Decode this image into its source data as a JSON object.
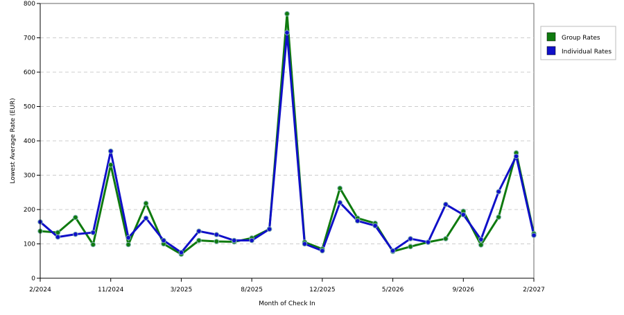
{
  "chart_data": {
    "type": "line",
    "title": "",
    "xlabel": "Month of Check In",
    "ylabel": "Lowest Average Rate (EUR)",
    "ylim": [
      0,
      800
    ],
    "yticks": [
      0,
      100,
      200,
      300,
      400,
      500,
      600,
      700,
      800
    ],
    "x_tick_labels": [
      "2/2024",
      "11/2024",
      "3/2025",
      "8/2025",
      "12/2025",
      "5/2026",
      "9/2026",
      "2/2027"
    ],
    "x_tick_positions": [
      0,
      4,
      8,
      12,
      16,
      20,
      24,
      28
    ],
    "x_range": [
      0,
      28
    ],
    "grid": "horizontal dashed",
    "legend_position": "right",
    "series": [
      {
        "name": "Group Rates",
        "color": "#0f7a0f",
        "values": [
          137,
          133,
          177,
          98,
          330,
          98,
          218,
          100,
          70,
          110,
          107,
          106,
          117,
          143,
          770,
          105,
          85,
          262,
          175,
          160,
          78,
          92,
          105,
          115,
          195,
          97,
          178,
          365,
          130
        ]
      },
      {
        "name": "Individual Rates",
        "color": "#1010c8",
        "values": [
          164,
          120,
          128,
          133,
          370,
          118,
          175,
          110,
          75,
          137,
          127,
          110,
          110,
          143,
          715,
          100,
          80,
          220,
          167,
          153,
          80,
          115,
          105,
          215,
          185,
          113,
          252,
          355,
          125
        ]
      }
    ]
  }
}
